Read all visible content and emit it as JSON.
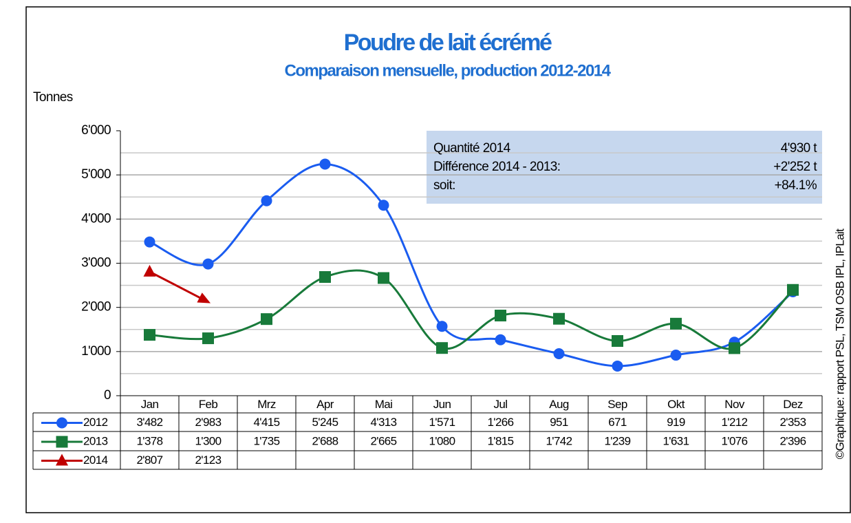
{
  "chart_data": {
    "type": "line",
    "title": "Poudre de lait écrémé",
    "subtitle": "Comparaison mensuelle, production 2012-2014",
    "y_label": "Tonnes",
    "credit": "©Graphique: rapport PSL, TSM OSB IPL, IPLait",
    "categories": [
      "Jan",
      "Feb",
      "Mrz",
      "Apr",
      "Mai",
      "Jun",
      "Jul",
      "Aug",
      "Sep",
      "Okt",
      "Nov",
      "Dez"
    ],
    "series": [
      {
        "name": "2012",
        "color": "#1a5cf0",
        "marker": "circle",
        "values": [
          3482,
          2983,
          4415,
          5245,
          4313,
          1571,
          1266,
          951,
          671,
          919,
          1212,
          2353
        ],
        "value_labels": [
          "3'482",
          "2'983",
          "4'415",
          "5'245",
          "4'313",
          "1'571",
          "1'266",
          "951",
          "671",
          "919",
          "1'212",
          "2'353"
        ]
      },
      {
        "name": "2013",
        "color": "#187a3a",
        "marker": "square",
        "values": [
          1378,
          1300,
          1735,
          2688,
          2665,
          1080,
          1815,
          1742,
          1239,
          1631,
          1076,
          2396
        ],
        "value_labels": [
          "1'378",
          "1'300",
          "1'735",
          "2'688",
          "2'665",
          "1'080",
          "1'815",
          "1'742",
          "1'239",
          "1'631",
          "1'076",
          "2'396"
        ]
      },
      {
        "name": "2014",
        "color": "#c00000",
        "marker": "triangle",
        "values": [
          2807,
          2123,
          null,
          null,
          null,
          null,
          null,
          null,
          null,
          null,
          null,
          null
        ],
        "value_labels": [
          "2'807",
          "2'123",
          null,
          null,
          null,
          null,
          null,
          null,
          null,
          null,
          null,
          null
        ]
      }
    ],
    "ylim": [
      0,
      6000
    ],
    "yticks": [
      0,
      {
        "value": 1000,
        "label": "1'000"
      },
      {
        "value": 2000,
        "label": "2'000"
      },
      {
        "value": 3000,
        "label": "3'000"
      },
      {
        "value": 4000,
        "label": "4'000"
      },
      {
        "value": 5000,
        "label": "5'000"
      },
      {
        "value": 6000,
        "label": "6'000"
      }
    ],
    "minor_yticks": [
      500,
      1500,
      2500,
      3500,
      4500,
      5500
    ],
    "grid": true,
    "annotation": [
      [
        "Quantité 2014",
        "4'930 t"
      ],
      [
        "Différence 2014 - 2013:",
        "+2'252 t"
      ],
      [
        "soit:",
        "+84.1%"
      ]
    ]
  }
}
